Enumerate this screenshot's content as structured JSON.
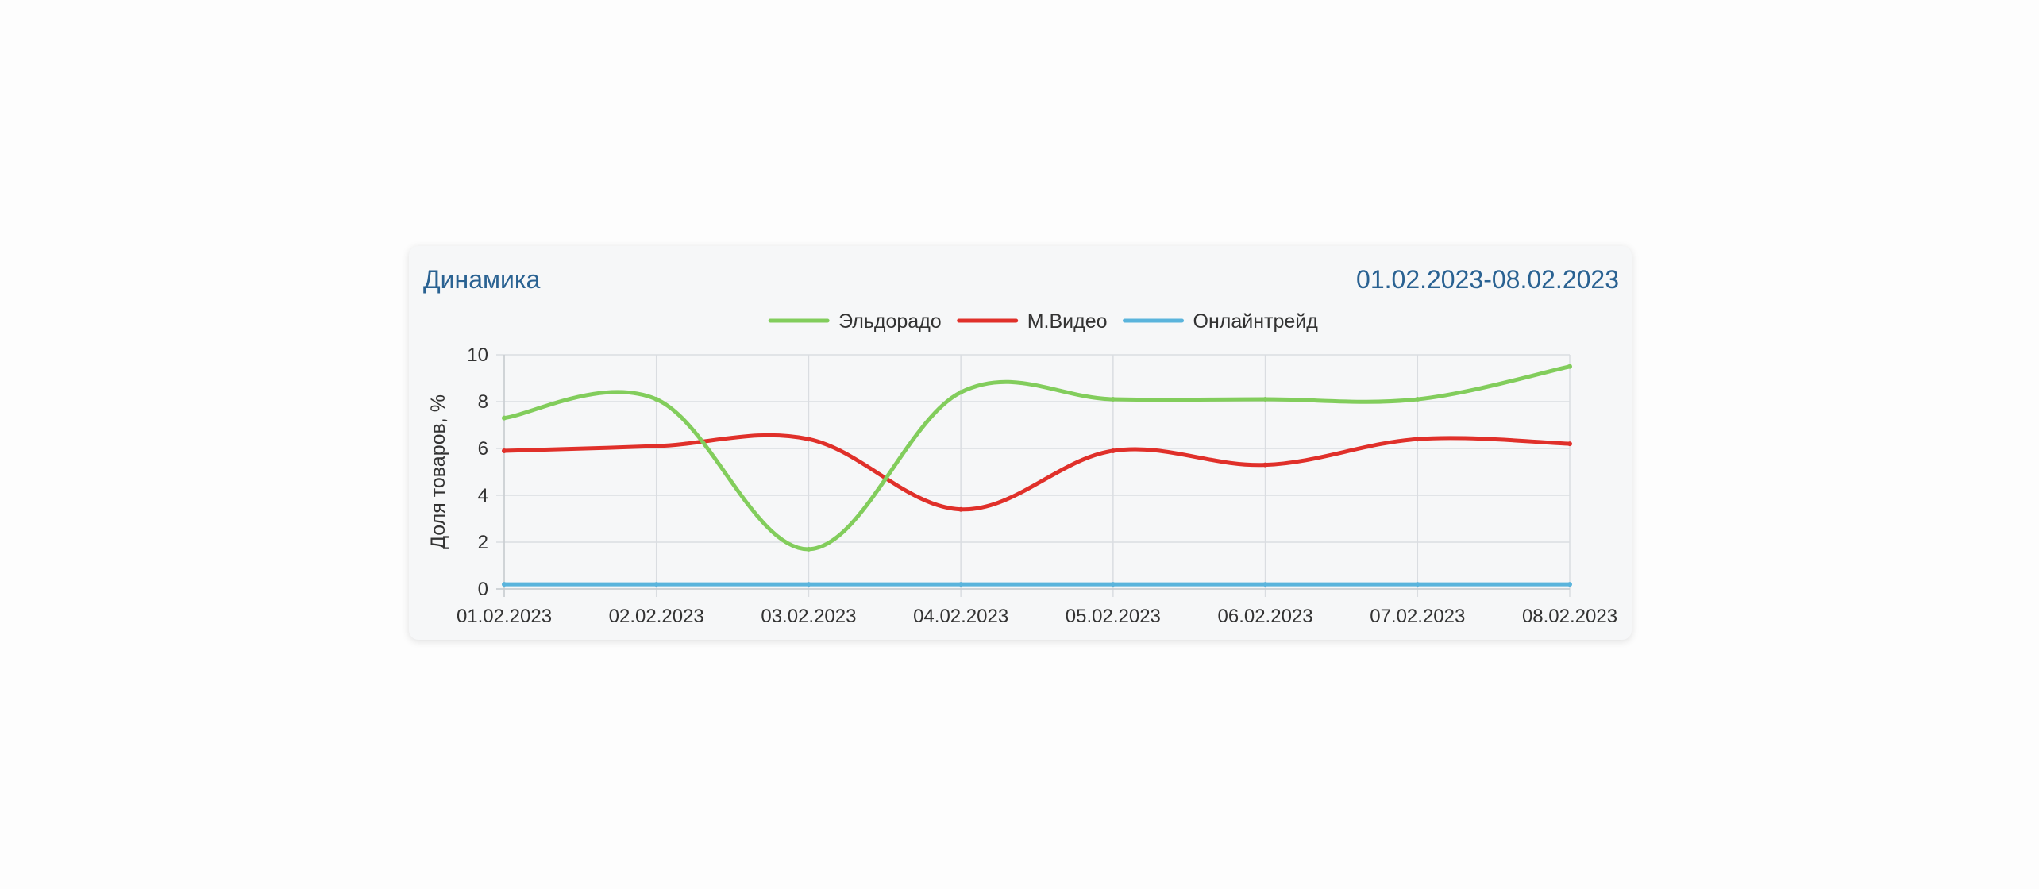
{
  "header": {
    "title": "Динамика",
    "date_range": "01.02.2023-08.02.2023"
  },
  "chart_data": {
    "type": "line",
    "title": "",
    "xlabel": "",
    "ylabel": "Доля товаров, %",
    "ylim": [
      0,
      10
    ],
    "yticks": [
      0,
      2,
      4,
      6,
      8,
      10
    ],
    "grid": true,
    "legend_position": "top-center",
    "x": [
      "01.02.2023",
      "02.02.2023",
      "03.02.2023",
      "04.02.2023",
      "05.02.2023",
      "06.02.2023",
      "07.02.2023",
      "08.02.2023"
    ],
    "series": [
      {
        "name": "Эльдорадо",
        "color": "#82cd5c",
        "values": [
          7.3,
          8.1,
          1.7,
          8.4,
          8.1,
          8.1,
          8.1,
          9.5
        ]
      },
      {
        "name": "М.Видео",
        "color": "#e0302a",
        "values": [
          5.9,
          6.1,
          6.4,
          3.4,
          5.9,
          5.3,
          6.4,
          6.2
        ]
      },
      {
        "name": "Онлайнтрейд",
        "color": "#5ab4dc",
        "values": [
          0.2,
          0.2,
          0.2,
          0.2,
          0.2,
          0.2,
          0.2,
          0.2
        ]
      }
    ]
  }
}
